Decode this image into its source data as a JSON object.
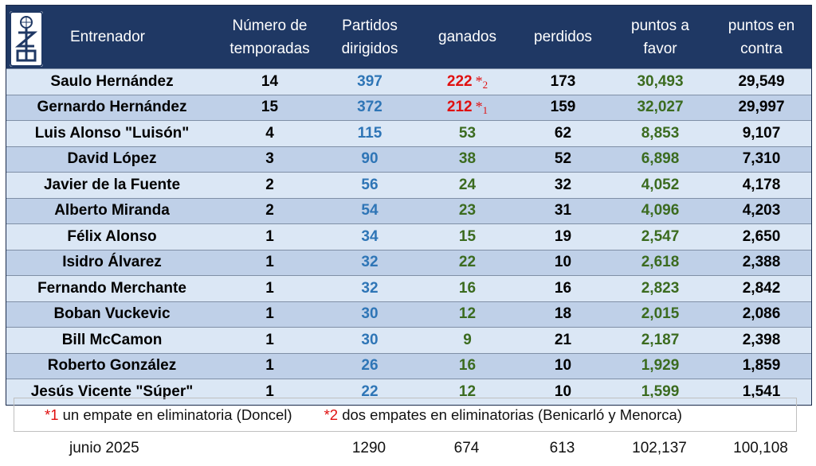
{
  "header": {
    "coach": "Entrenador",
    "seasons": "Número de\ntemporadas",
    "games": "Partidos\ndirigidos",
    "won": "ganados",
    "lost": "perdidos",
    "points_for": "puntos a\nfavor",
    "points_against": "puntos en\ncontra",
    "logo_icon": "club-crest-icon"
  },
  "rows": [
    {
      "name": "Saulo Hernández",
      "seasons": "14",
      "games": "397",
      "won": "222",
      "note": "2",
      "lost": "173",
      "pf": "30,493",
      "pa": "29,549"
    },
    {
      "name": "Gernardo Hernández",
      "seasons": "15",
      "games": "372",
      "won": "212",
      "note": "1",
      "lost": "159",
      "pf": "32,027",
      "pa": "29,997"
    },
    {
      "name": "Luis Alonso \"Luisón\"",
      "seasons": "4",
      "games": "115",
      "won": "53",
      "lost": "62",
      "pf": "8,853",
      "pa": "9,107"
    },
    {
      "name": "David López",
      "seasons": "3",
      "games": "90",
      "won": "38",
      "lost": "52",
      "pf": "6,898",
      "pa": "7,310"
    },
    {
      "name": "Javier de la Fuente",
      "seasons": "2",
      "games": "56",
      "won": "24",
      "lost": "32",
      "pf": "4,052",
      "pa": "4,178"
    },
    {
      "name": "Alberto Miranda",
      "seasons": "2",
      "games": "54",
      "won": "23",
      "lost": "31",
      "pf": "4,096",
      "pa": "4,203"
    },
    {
      "name": "Félix Alonso",
      "seasons": "1",
      "games": "34",
      "won": "15",
      "lost": "19",
      "pf": "2,547",
      "pa": "2,650"
    },
    {
      "name": "Isidro Álvarez",
      "seasons": "1",
      "games": "32",
      "won": "22",
      "lost": "10",
      "pf": "2,618",
      "pa": "2,388"
    },
    {
      "name": "Fernando  Merchante",
      "seasons": "1",
      "games": "32",
      "won": "16",
      "lost": "16",
      "pf": "2,823",
      "pa": "2,842"
    },
    {
      "name": "Boban  Vuckevic",
      "seasons": "1",
      "games": "30",
      "won": "12",
      "lost": "18",
      "pf": "2,015",
      "pa": "2,086"
    },
    {
      "name": "Bill McCamon",
      "seasons": "1",
      "games": "30",
      "won": "9",
      "lost": "21",
      "pf": "2,187",
      "pa": "2,398"
    },
    {
      "name": "Roberto González",
      "seasons": "1",
      "games": "26",
      "won": "16",
      "lost": "10",
      "pf": "1,929",
      "pa": "1,859"
    },
    {
      "name": "Jesús Vicente \"Súper\"",
      "seasons": "1",
      "games": "22",
      "won": "12",
      "lost": "10",
      "pf": "1,599",
      "pa": "1,541"
    }
  ],
  "notes": {
    "n1_mark": "*1",
    "n1_text": " un empate en eliminatoria  (Doncel)",
    "n2_mark": "*2",
    "n2_text": " dos empates en eliminatorias (Benicarló y Menorca)"
  },
  "footer": {
    "date": "junio 2025",
    "games": "1290",
    "won": "674",
    "lost": "613",
    "pf": "102,137",
    "pa": "100,108"
  },
  "colors": {
    "header_bg": "#1f3864",
    "row_light": "#dbe7f5",
    "row_dark": "#bfd0e8",
    "games": "#2e75b6",
    "won": "#3b6b1f",
    "points_for": "#3b6b1f",
    "highlight": "#e01010"
  }
}
